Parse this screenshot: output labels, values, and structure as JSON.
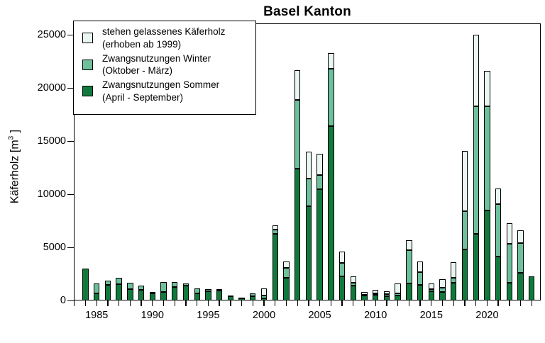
{
  "chart_data": {
    "type": "bar",
    "stacked": true,
    "title": "Basel Kanton",
    "xlabel": "",
    "ylabel": "Käferholz [m³]",
    "ylabel_parts": {
      "prefix": "Käferholz [m",
      "sup": "3",
      "suffix": " ]"
    },
    "ylim": [
      0,
      26000
    ],
    "y_ticks": [
      0,
      5000,
      10000,
      15000,
      20000,
      25000
    ],
    "x_axis_years": {
      "first_tick": 1983,
      "last_tick": 2024,
      "labeled_every": 5
    },
    "x_labeled_ticks": [
      1985,
      1990,
      1995,
      2000,
      2005,
      2010,
      2015,
      2020
    ],
    "grid": false,
    "legend_position": "top-left",
    "categories": [
      1984,
      1985,
      1986,
      1987,
      1988,
      1989,
      1990,
      1991,
      1992,
      1993,
      1994,
      1995,
      1996,
      1997,
      1998,
      1999,
      2000,
      2001,
      2002,
      2003,
      2004,
      2005,
      2006,
      2007,
      2008,
      2009,
      2010,
      2011,
      2012,
      2013,
      2014,
      2015,
      2016,
      2017,
      2018,
      2019,
      2020,
      2021,
      2022,
      2023,
      2024
    ],
    "series": [
      {
        "key": "sommer",
        "name": "Zwangsnutzungen Sommer (April - September)",
        "color": "#107a3c",
        "values": [
          3000,
          650,
          1500,
          1550,
          1050,
          1000,
          650,
          800,
          1250,
          1400,
          700,
          900,
          950,
          400,
          200,
          400,
          200,
          6250,
          2150,
          12400,
          8900,
          10500,
          16400,
          2300,
          1400,
          500,
          550,
          400,
          470,
          1600,
          1500,
          870,
          820,
          1700,
          4800,
          6250,
          8500,
          4150,
          1650,
          2600,
          2300
        ]
      },
      {
        "key": "winter",
        "name": "Zwangsnutzungen Winter (Oktober - März)",
        "color": "#6ec09c",
        "values": [
          0,
          950,
          400,
          600,
          600,
          400,
          150,
          950,
          500,
          200,
          450,
          150,
          150,
          100,
          50,
          250,
          300,
          400,
          900,
          6500,
          2550,
          1300,
          5400,
          1250,
          300,
          50,
          150,
          200,
          180,
          3150,
          1200,
          180,
          380,
          450,
          3600,
          12050,
          9800,
          4900,
          3700,
          2800,
          0
        ]
      },
      {
        "key": "stehen",
        "name": "stehen gelassenes Käferholz (erhoben ab 1999)",
        "color": "#eaf6f2",
        "values": [
          0,
          0,
          0,
          0,
          0,
          0,
          0,
          0,
          0,
          0,
          0,
          0,
          0,
          0,
          0,
          0,
          650,
          450,
          600,
          2800,
          2550,
          2000,
          1500,
          1050,
          550,
          270,
          300,
          270,
          950,
          950,
          950,
          550,
          820,
          1450,
          5700,
          6700,
          3300,
          1500,
          1900,
          1200,
          0
        ]
      }
    ]
  },
  "legend": {
    "items": [
      {
        "series": "stehen",
        "label": "stehen gelassenes Käferholz",
        "sublabel": "(erhoben ab 1999)"
      },
      {
        "series": "winter",
        "label": "Zwangsnutzungen Winter",
        "sublabel": "(Oktober - März)"
      },
      {
        "series": "sommer",
        "label": "Zwangsnutzungen Sommer",
        "sublabel": "(April - September)"
      }
    ]
  },
  "colors": {
    "bar_border": "#000000",
    "axis": "#000000",
    "background": "#ffffff",
    "text": "#000000"
  }
}
